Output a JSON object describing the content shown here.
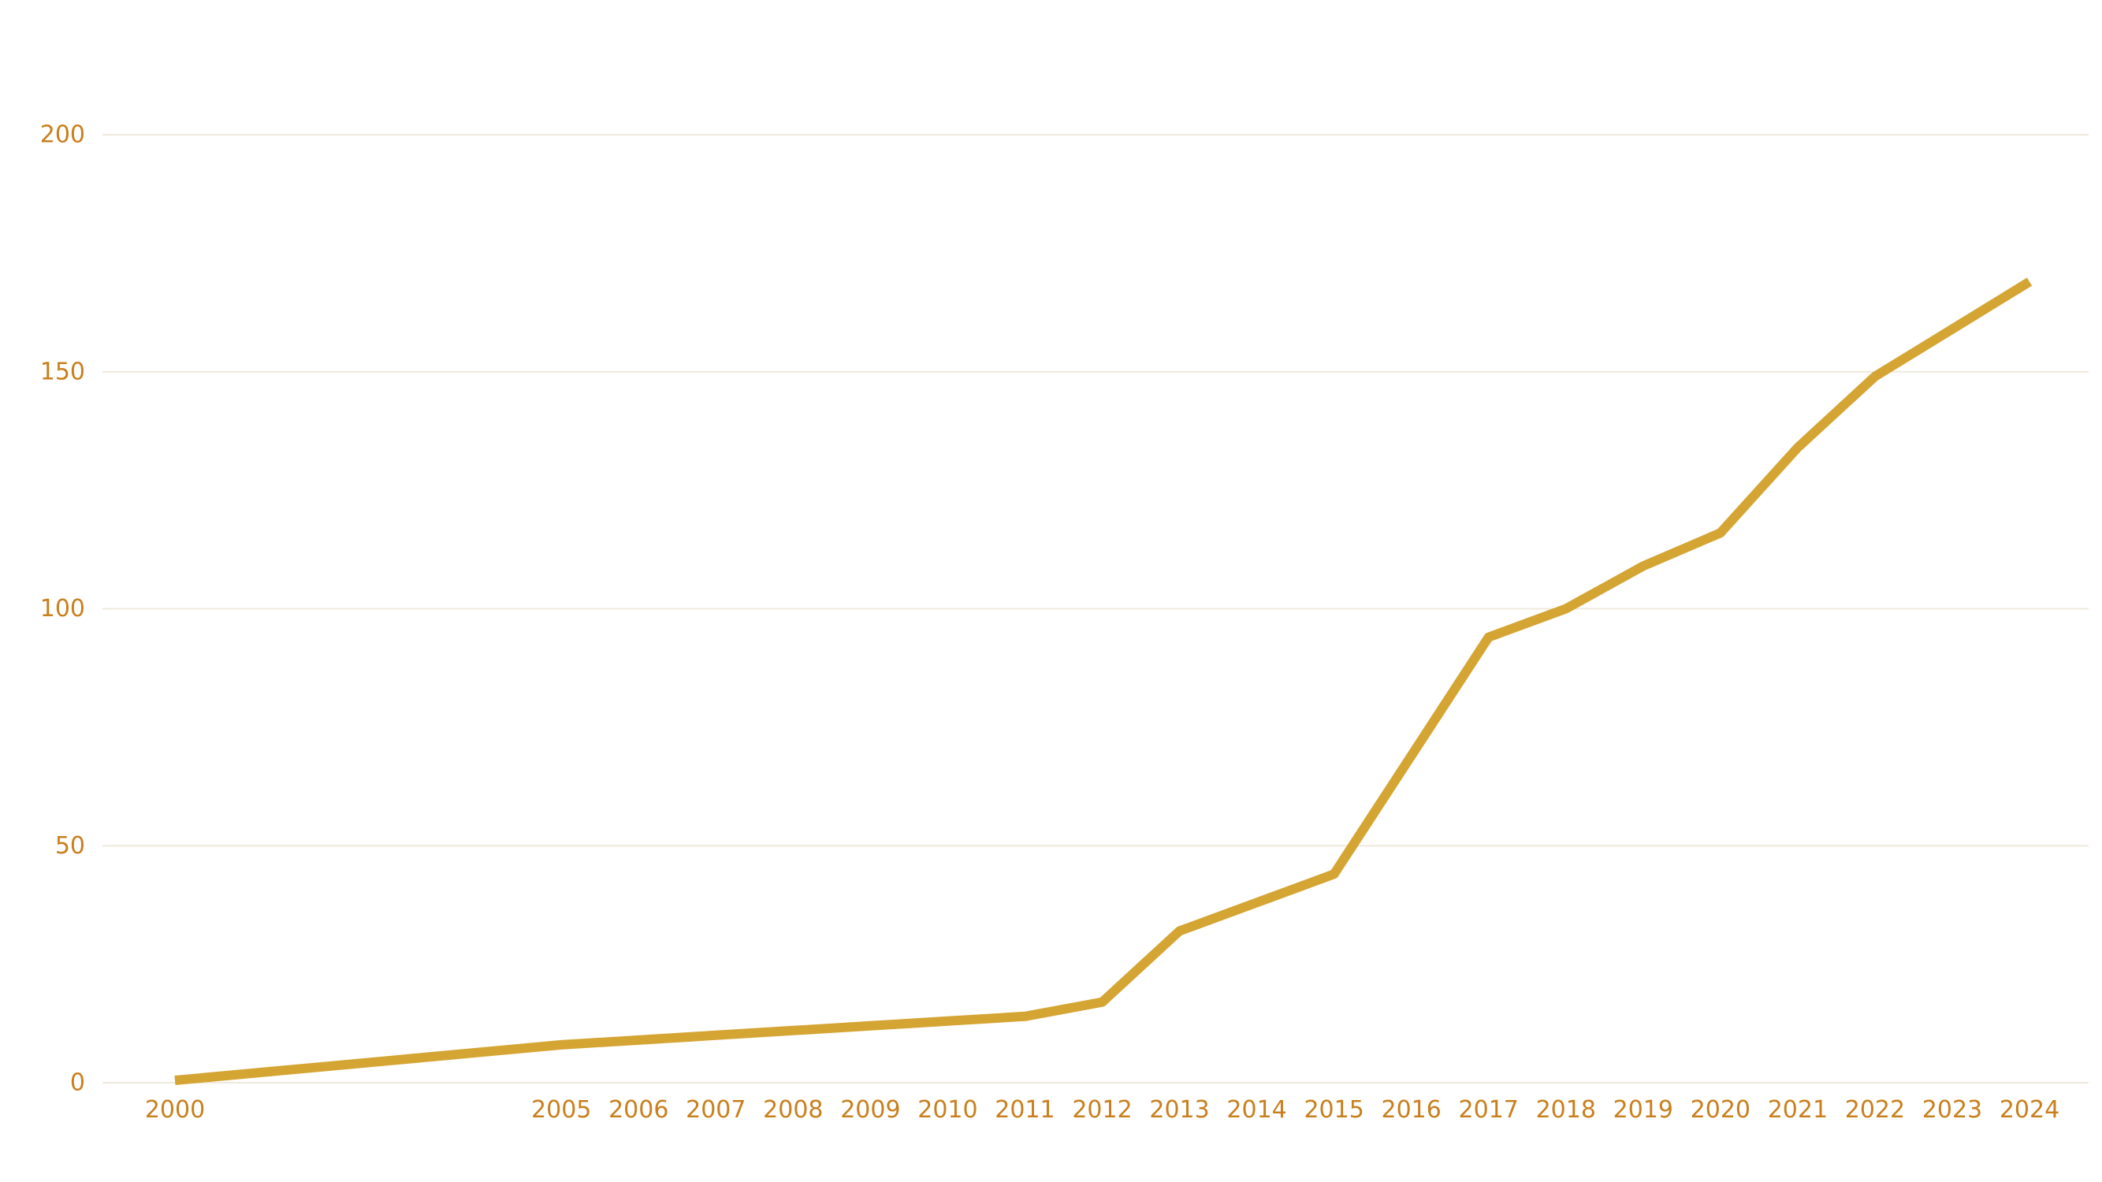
{
  "chart_data": {
    "type": "line",
    "title": "",
    "xlabel": "",
    "ylabel": "",
    "ylim": [
      0,
      200
    ],
    "yticks": [
      0,
      50,
      100,
      150,
      200
    ],
    "grid": "horizontal",
    "legend": "none",
    "x": [
      2000,
      2005,
      2006,
      2007,
      2008,
      2009,
      2010,
      2011,
      2012,
      2013,
      2014,
      2015,
      2016,
      2017,
      2018,
      2019,
      2020,
      2021,
      2022,
      2023,
      2024
    ],
    "x_tick_labels": [
      "2000",
      "2005",
      "2006",
      "2007",
      "2008",
      "2009",
      "2010",
      "2011",
      "2012",
      "2013",
      "2014",
      "2015",
      "2016",
      "2017",
      "2018",
      "2019",
      "2020",
      "2021",
      "2022",
      "2023",
      "2024"
    ],
    "series": [
      {
        "values": [
          0.5,
          8,
          9,
          10,
          11,
          12,
          13,
          14,
          17,
          32,
          38,
          44,
          69,
          94,
          100,
          109,
          116,
          134,
          149,
          159,
          169
        ]
      }
    ],
    "colors": {
      "line": "#D4A533",
      "tick_label": "#C97F1C",
      "grid": "#EFE9DC"
    }
  }
}
